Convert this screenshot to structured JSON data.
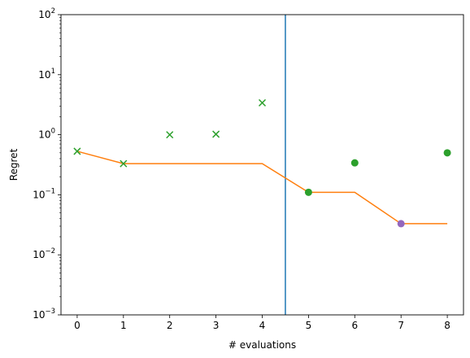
{
  "chart_data": {
    "type": "scatter",
    "xlabel": "# evaluations",
    "ylabel": "Regret",
    "xlim": [
      -0.35,
      8.35
    ],
    "ylim": [
      0.001,
      100
    ],
    "y_scale": "log",
    "x_ticks": [
      0,
      1,
      2,
      3,
      4,
      5,
      6,
      7,
      8
    ],
    "y_ticks": [
      {
        "value": 0.001,
        "base": "10",
        "exp": "−3"
      },
      {
        "value": 0.01,
        "base": "10",
        "exp": "−2"
      },
      {
        "value": 0.1,
        "base": "10",
        "exp": "−1"
      },
      {
        "value": 1,
        "base": "10",
        "exp": "0"
      },
      {
        "value": 10,
        "base": "10",
        "exp": "1"
      },
      {
        "value": 100,
        "base": "10",
        "exp": "2"
      }
    ],
    "grid": false,
    "vline": {
      "x": 4.5,
      "color": "#1f77b4"
    },
    "series": [
      {
        "marker": "x",
        "color": "#2ca02c",
        "points": [
          [
            0,
            0.53
          ],
          [
            1,
            0.33
          ],
          [
            2,
            1.0
          ],
          [
            3,
            1.02
          ],
          [
            4,
            3.4
          ]
        ]
      },
      {
        "marker": "o",
        "color": "#2ca02c",
        "points": [
          [
            5,
            0.11
          ],
          [
            6,
            0.34
          ],
          [
            8,
            0.5
          ]
        ]
      },
      {
        "marker": "o",
        "color": "#9467bd",
        "points": [
          [
            7,
            0.033
          ]
        ]
      },
      {
        "marker": "line",
        "color": "#ff7f0e",
        "points": [
          [
            0,
            0.53
          ],
          [
            1,
            0.33
          ],
          [
            2,
            0.33
          ],
          [
            3,
            0.33
          ],
          [
            4,
            0.33
          ],
          [
            5,
            0.11
          ],
          [
            6,
            0.11
          ],
          [
            7,
            0.033
          ],
          [
            8,
            0.033
          ]
        ]
      }
    ]
  }
}
